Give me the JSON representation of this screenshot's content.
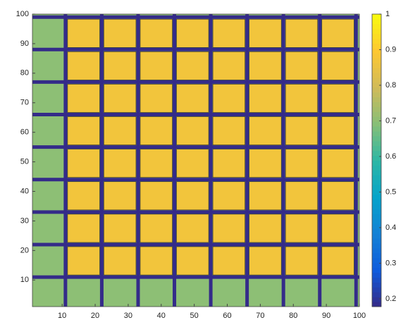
{
  "chart_data": {
    "type": "contour",
    "xlim": [
      1,
      100
    ],
    "ylim": [
      1,
      100
    ],
    "xticks": [
      10,
      20,
      30,
      40,
      50,
      60,
      70,
      80,
      90,
      100
    ],
    "yticks": [
      10,
      20,
      30,
      40,
      50,
      60,
      70,
      80,
      90,
      100
    ],
    "separators": [
      11,
      22,
      33,
      44,
      55,
      66,
      77,
      88,
      99
    ],
    "block_value": 0.87,
    "separator_value": 0.18,
    "edge_value": 0.7,
    "clim": [
      0.178,
      1
    ],
    "cticks": [
      0.2,
      0.3,
      0.4,
      0.5,
      0.6,
      0.7,
      0.8,
      0.9,
      1
    ],
    "colormap": [
      "#352a87",
      "#0f5cdd",
      "#1481d6",
      "#06a4ca",
      "#2eb7a4",
      "#87bf77",
      "#d1bb59",
      "#fec832",
      "#f9fb0e"
    ]
  }
}
